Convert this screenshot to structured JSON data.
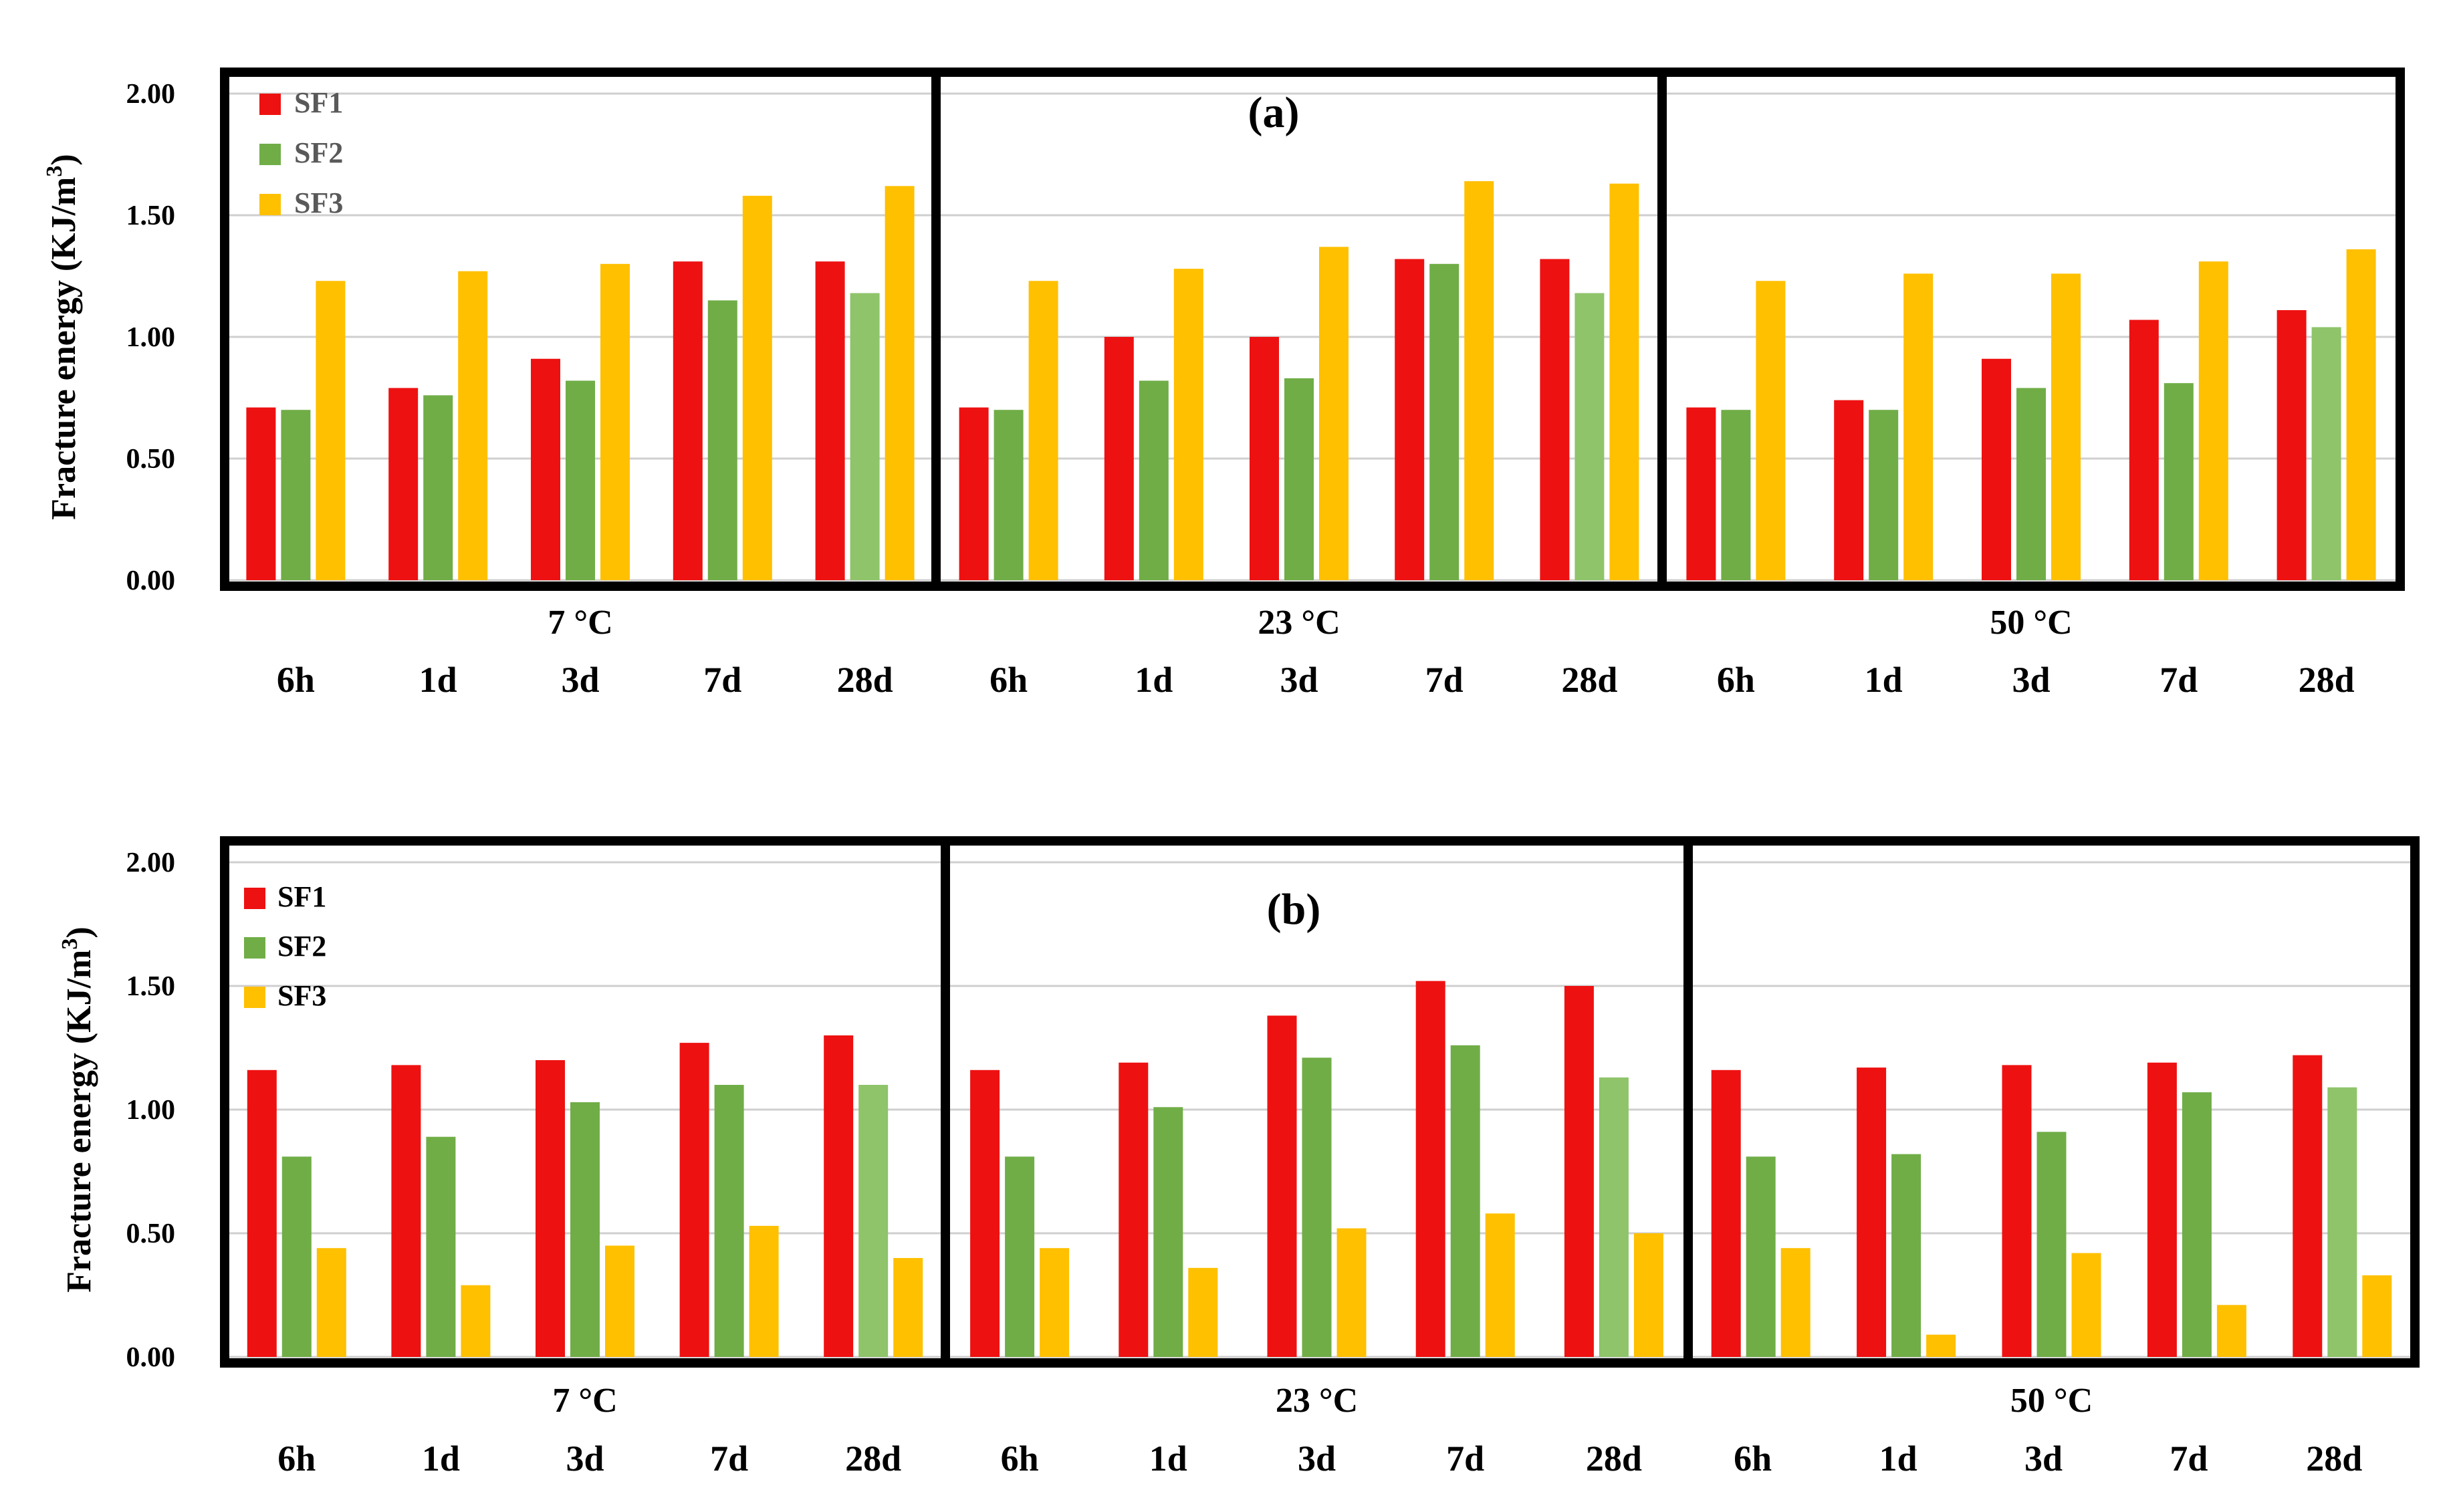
{
  "chart_data": [
    {
      "type": "bar",
      "panel_label": "(a)",
      "ylabel": "Fracture energy (KJ/m",
      "ylabel_sup": "3",
      "ylabel_end": ")",
      "ylim": [
        0,
        2
      ],
      "yticks": [
        "0.00",
        "0.50",
        "1.00",
        "1.50",
        "2.00"
      ],
      "grid": true,
      "legend": "top-left",
      "series_names": [
        "SF1",
        "SF2",
        "SF3"
      ],
      "colors": [
        "#ee1111",
        "#70ad47",
        "#ffc000"
      ],
      "categories": [
        "6h",
        "1d",
        "3d",
        "7d",
        "28d"
      ],
      "groups": [
        {
          "temperature": "7 °C",
          "series": [
            {
              "name": "SF1",
              "values": [
                0.71,
                0.79,
                0.91,
                1.31,
                1.31
              ]
            },
            {
              "name": "SF2",
              "values": [
                0.7,
                0.76,
                0.82,
                1.15,
                1.18
              ]
            },
            {
              "name": "SF3",
              "values": [
                1.23,
                1.27,
                1.3,
                1.58,
                1.62
              ]
            }
          ]
        },
        {
          "temperature": "23 °C",
          "series": [
            {
              "name": "SF1",
              "values": [
                0.71,
                1.0,
                1.0,
                1.32,
                1.32
              ]
            },
            {
              "name": "SF2",
              "values": [
                0.7,
                0.82,
                0.83,
                1.3,
                1.18
              ]
            },
            {
              "name": "SF3",
              "values": [
                1.23,
                1.28,
                1.37,
                1.64,
                1.63
              ]
            }
          ]
        },
        {
          "temperature": "50 °C",
          "series": [
            {
              "name": "SF1",
              "values": [
                0.71,
                0.74,
                0.91,
                1.07,
                1.11
              ]
            },
            {
              "name": "SF2",
              "values": [
                0.7,
                0.7,
                0.79,
                0.81,
                1.04
              ]
            },
            {
              "name": "SF3",
              "values": [
                1.23,
                1.26,
                1.26,
                1.31,
                1.36
              ]
            }
          ]
        }
      ]
    },
    {
      "type": "bar",
      "panel_label": "(b)",
      "ylabel": "Fracture energy (KJ/m",
      "ylabel_sup": "3",
      "ylabel_end": ")",
      "ylim": [
        0,
        2
      ],
      "yticks": [
        "0.00",
        "0.50",
        "1.00",
        "1.50",
        "2.00"
      ],
      "grid": true,
      "legend": "top-left",
      "series_names": [
        "SF1",
        "SF2",
        "SF3"
      ],
      "colors": [
        "#ee1111",
        "#70ad47",
        "#ffc000"
      ],
      "categories": [
        "6h",
        "1d",
        "3d",
        "7d",
        "28d"
      ],
      "groups": [
        {
          "temperature": "7 °C",
          "series": [
            {
              "name": "SF1",
              "values": [
                1.16,
                1.18,
                1.2,
                1.27,
                1.3
              ]
            },
            {
              "name": "SF2",
              "values": [
                0.81,
                0.89,
                1.03,
                1.1,
                1.1
              ]
            },
            {
              "name": "SF3",
              "values": [
                0.44,
                0.29,
                0.45,
                0.53,
                0.4
              ]
            }
          ]
        },
        {
          "temperature": "23 °C",
          "series": [
            {
              "name": "SF1",
              "values": [
                1.16,
                1.19,
                1.38,
                1.52,
                1.5
              ]
            },
            {
              "name": "SF2",
              "values": [
                0.81,
                1.01,
                1.21,
                1.26,
                1.13
              ]
            },
            {
              "name": "SF3",
              "values": [
                0.44,
                0.36,
                0.52,
                0.58,
                0.5
              ]
            }
          ]
        },
        {
          "temperature": "50 °C",
          "series": [
            {
              "name": "SF1",
              "values": [
                1.16,
                1.17,
                1.18,
                1.19,
                1.22
              ]
            },
            {
              "name": "SF2",
              "values": [
                0.81,
                0.82,
                0.91,
                1.07,
                1.09
              ]
            },
            {
              "name": "SF3",
              "values": [
                0.44,
                0.09,
                0.42,
                0.21,
                0.33
              ]
            }
          ]
        }
      ]
    }
  ]
}
